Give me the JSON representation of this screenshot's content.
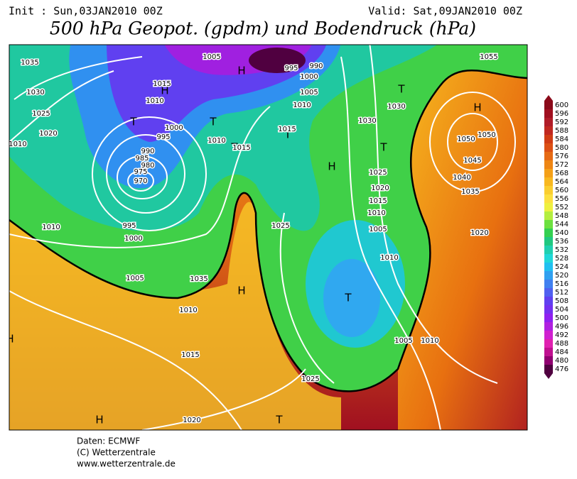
{
  "header": {
    "init": "Init : Sun,03JAN2010 00Z",
    "valid": "Valid: Sat,09JAN2010 00Z",
    "title": "500 hPa Geopot. (gpdm) und Bodendruck (hPa)"
  },
  "colorbar": {
    "ticks": [
      600,
      596,
      592,
      588,
      584,
      580,
      576,
      572,
      568,
      564,
      560,
      556,
      552,
      548,
      544,
      540,
      536,
      532,
      528,
      524,
      520,
      516,
      512,
      508,
      504,
      500,
      496,
      492,
      488,
      484,
      480,
      476
    ],
    "colors": [
      "#8b0a1a",
      "#a01020",
      "#b01c28",
      "#c02820",
      "#d03c14",
      "#dc5014",
      "#e66a14",
      "#ee8614",
      "#f4a018",
      "#f8b820",
      "#face30",
      "#fce040",
      "#eef040",
      "#b4ee40",
      "#6ce040",
      "#34d050",
      "#20c880",
      "#20d0b0",
      "#20d8d8",
      "#20c0f0",
      "#30a0f0",
      "#4080f0",
      "#5060f0",
      "#6040f0",
      "#7430f0",
      "#9020f0",
      "#b020e0",
      "#d020d0",
      "#e020b0",
      "#c01090",
      "#900070",
      "#500040"
    ]
  },
  "map_labels": [
    "H",
    "H",
    "T",
    "T",
    "T",
    "T",
    "T",
    "H",
    "H",
    "H",
    "T",
    "H",
    "T",
    "H",
    "T",
    1035,
    1030,
    1025,
    1020,
    1010,
    1000,
    995,
    990,
    985,
    980,
    975,
    970,
    995,
    1000,
    1010,
    1005,
    1005,
    1015,
    1010,
    1010,
    1015,
    1015,
    1010,
    1005,
    1000,
    995,
    990,
    1030,
    1030,
    1025,
    1020,
    1015,
    1010,
    1005,
    1025,
    1010,
    1005,
    1010,
    1015,
    1010,
    1035,
    1025,
    1020,
    1055,
    1050,
    1050,
    1045,
    1040,
    1035,
    1020
  ],
  "footer": [
    "Daten: ECMWF",
    "(C) Wetterzentrale",
    "www.wetterzentrale.de"
  ]
}
